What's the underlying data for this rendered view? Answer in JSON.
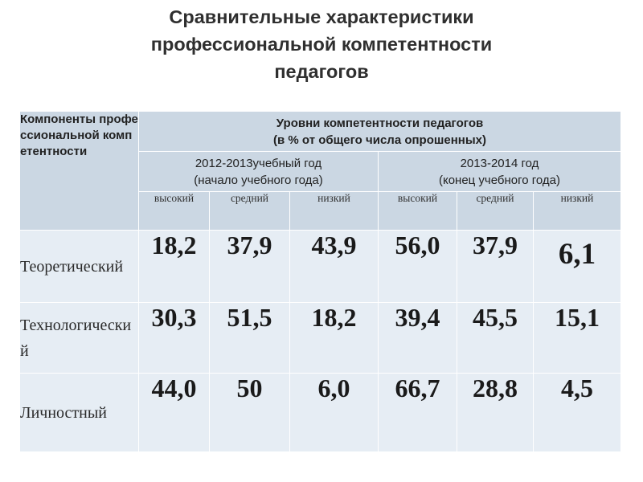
{
  "title": {
    "line1": "Сравнительные характеристики",
    "line2": "профессиональной компетентности",
    "line3": "педагогов"
  },
  "table": {
    "component_header": "Компоненты профессиональной компетентности",
    "levels_header": {
      "line1": "Уровни компетентности педагогов",
      "line2": "(в  % от общего числа опрошенных)"
    },
    "years": [
      {
        "line1": "2012-2013учебный год",
        "line2": "(начало учебного года)"
      },
      {
        "line1": "2013-2014 год",
        "line2": "(конец учебного года)"
      }
    ],
    "sublevels": [
      "высокий",
      "средний",
      "низкий",
      "высокий",
      "средний",
      "низкий"
    ],
    "rows": [
      {
        "label": "Теоретический",
        "values": [
          "18,2",
          "37,9",
          "43,9",
          "56,0",
          "37,9",
          "6,1"
        ]
      },
      {
        "label": "Технологический",
        "values": [
          "30,3",
          "51,5",
          "18,2",
          "39,4",
          "45,5",
          "15,1"
        ]
      },
      {
        "label": "Личностный",
        "values": [
          "44,0",
          "50",
          "6,0",
          "66,7",
          "28,8",
          "4,5"
        ]
      }
    ]
  }
}
